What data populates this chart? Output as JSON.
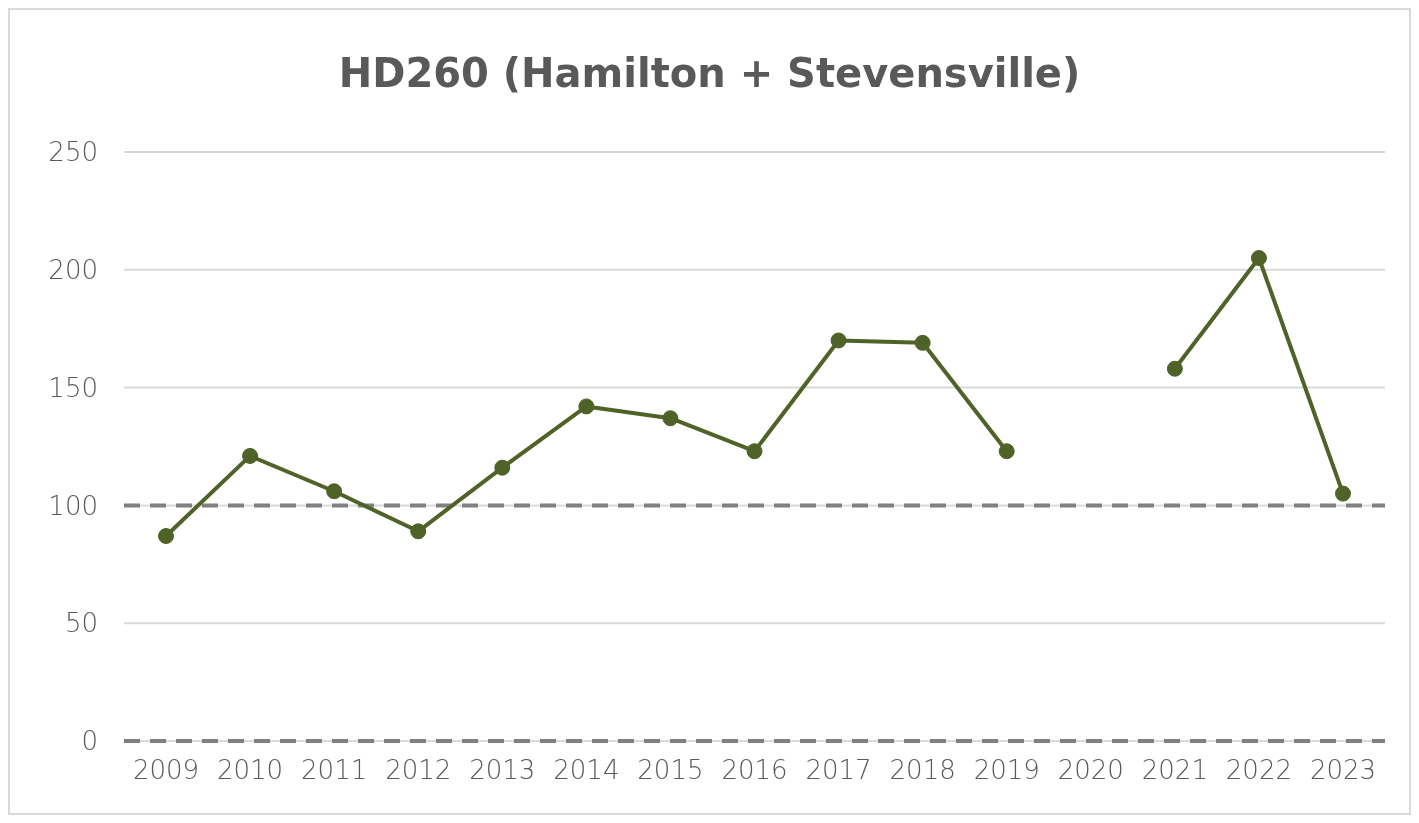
{
  "chart_data": {
    "type": "line",
    "title": "HD260 (Hamilton + Stevensville)",
    "categories": [
      "2009",
      "2010",
      "2011",
      "2012",
      "2013",
      "2014",
      "2015",
      "2016",
      "2017",
      "2018",
      "2019",
      "2020",
      "2021",
      "2022",
      "2023"
    ],
    "series": [
      {
        "color": "#4f6228",
        "values": [
          87,
          121,
          106,
          89,
          116,
          142,
          137,
          123,
          170,
          169,
          123,
          null,
          158,
          205,
          105
        ]
      }
    ],
    "ylim": [
      0,
      250
    ],
    "yticks": [
      0,
      50,
      100,
      150,
      200,
      250
    ],
    "grid": "y",
    "marker": "circle",
    "line_style": "solid",
    "legend": false,
    "ref_lines": [
      {
        "axis": "y",
        "value": 100,
        "color": "#808080",
        "line_style": "dashed"
      },
      {
        "axis": "y",
        "value": 0,
        "color": "#808080",
        "line_style": "dashed"
      }
    ]
  }
}
